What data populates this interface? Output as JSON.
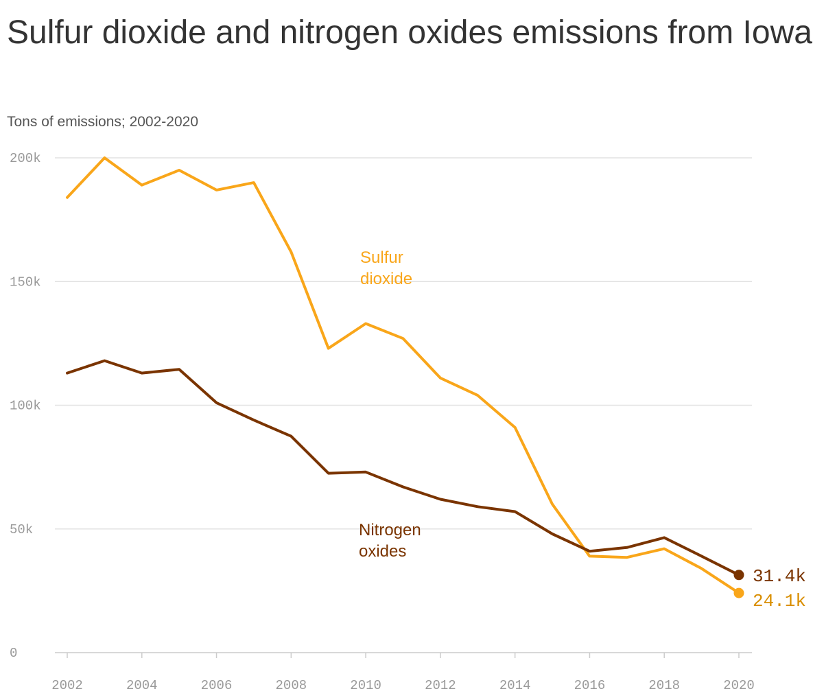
{
  "chart_data": {
    "type": "line",
    "title": "Sulfur dioxide and nitrogen oxides emissions from Iowa",
    "subtitle": "Tons of emissions; 2002-2020",
    "x": [
      2002,
      2003,
      2004,
      2005,
      2006,
      2007,
      2008,
      2009,
      2010,
      2011,
      2012,
      2013,
      2014,
      2015,
      2016,
      2017,
      2018,
      2019,
      2020
    ],
    "x_ticks": [
      "2002",
      "2004",
      "2006",
      "2008",
      "2010",
      "2012",
      "2014",
      "2016",
      "2018",
      "2020"
    ],
    "y_ticks": [
      "0",
      "50k",
      "100k",
      "150k",
      "200k"
    ],
    "ylim": [
      0,
      200000
    ],
    "xlim": [
      2002,
      2020
    ],
    "grid": true,
    "series": [
      {
        "name": "Sulfur dioxide",
        "label_lines": [
          "Sulfur",
          "dioxide"
        ],
        "color": "#F9A61A",
        "end_label": "24.1k",
        "end_label_color": "#D98E00",
        "values": [
          184000,
          200000,
          189000,
          195000,
          187000,
          190000,
          162000,
          123000,
          133000,
          127000,
          111000,
          104000,
          91000,
          60000,
          39000,
          38500,
          42000,
          34000,
          24100
        ]
      },
      {
        "name": "Nitrogen oxides",
        "label_lines": [
          "Nitrogen",
          "oxides"
        ],
        "color": "#7A3400",
        "end_label": "31.4k",
        "end_label_color": "#7A3400",
        "values": [
          113000,
          118000,
          113000,
          114500,
          101000,
          94000,
          87500,
          72500,
          73000,
          67000,
          62000,
          59000,
          57000,
          48000,
          41000,
          42500,
          46500,
          39000,
          31400
        ]
      }
    ]
  }
}
